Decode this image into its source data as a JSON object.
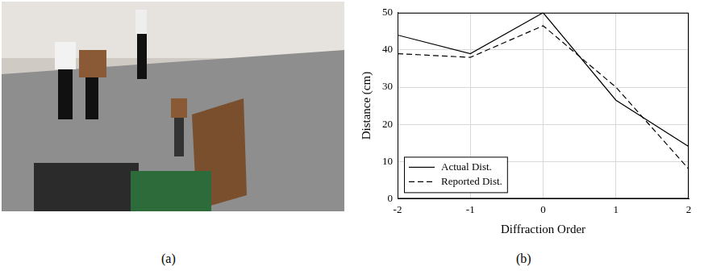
{
  "panel_labels": [
    "(a)",
    "(b)"
  ],
  "chart_data": {
    "type": "line",
    "x_label": "Diffraction Order",
    "y_label": "Distance (cm)",
    "x": [
      -2,
      -1,
      0,
      1,
      2
    ],
    "series": [
      {
        "name": "Actual Dist.",
        "color": "#000000",
        "line_style": "solid",
        "values": [
          44,
          39,
          50,
          26.5,
          14
        ]
      },
      {
        "name": "Reported Dist.",
        "color": "#000000",
        "line_style": "dashed",
        "values": [
          39,
          38,
          46.5,
          30,
          8
        ]
      }
    ],
    "xlim": [
      -2,
      2
    ],
    "xticks": [
      -2,
      -1,
      0,
      1,
      2
    ],
    "ylim": [
      0,
      50
    ],
    "yticks": [
      0,
      10,
      20,
      30,
      40,
      50
    ],
    "grid": true,
    "legend": "lower left"
  }
}
